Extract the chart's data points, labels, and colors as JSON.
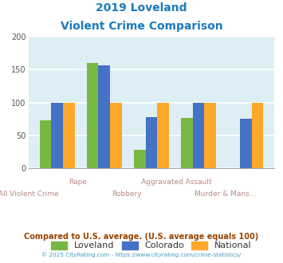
{
  "title_line1": "2019 Loveland",
  "title_line2": "Violent Crime Comparison",
  "loveland": [
    73,
    160,
    28,
    77,
    0
  ],
  "colorado": [
    100,
    157,
    78,
    100,
    75
  ],
  "national": [
    100,
    100,
    100,
    100,
    100
  ],
  "loveland_color": "#77b843",
  "colorado_color": "#4472c4",
  "national_color": "#fca829",
  "bg_color": "#ddeef4",
  "title_color": "#1a7abf",
  "xlabel_top": [
    "",
    "Rape",
    "",
    "Aggravated Assault",
    ""
  ],
  "xlabel_bot": [
    "All Violent Crime",
    "",
    "Robbery",
    "",
    "Murder & Mans..."
  ],
  "xlabel_color": "#bb8888",
  "ylabel_color": "#555555",
  "footer_text": "Compared to U.S. average. (U.S. average equals 100)",
  "footer2_text": "© 2025 CityRating.com - https://www.cityrating.com/crime-statistics/",
  "footer_color": "#994400",
  "footer2_color": "#4499bb",
  "ylim": [
    0,
    200
  ],
  "yticks": [
    0,
    50,
    100,
    150,
    200
  ],
  "grid_color": "#ffffff",
  "bar_width": 0.25,
  "legend_labels": [
    "Loveland",
    "Colorado",
    "National"
  ],
  "legend_text_color": "#333333"
}
